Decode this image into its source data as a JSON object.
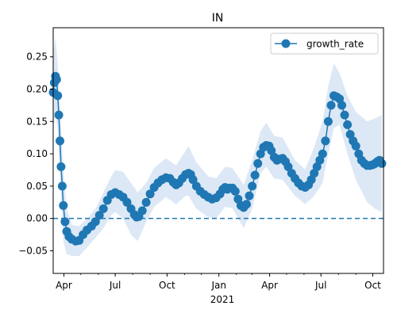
{
  "chart_data": {
    "type": "line",
    "title": "IN",
    "xlabel": "2021",
    "ylabel": "",
    "xlim": [
      "2020-03-13",
      "2021-10-20"
    ],
    "ylim": [
      -0.085,
      0.295
    ],
    "yticks": [
      -0.05,
      0.0,
      0.05,
      0.1,
      0.15,
      0.2,
      0.25
    ],
    "ytick_labels": [
      "−0.05",
      "0.00",
      "0.05",
      "0.10",
      "0.15",
      "0.20",
      "0.25"
    ],
    "xticks": [
      {
        "date": "2020-04-01",
        "label": "Apr"
      },
      {
        "date": "2020-07-01",
        "label": "Jul"
      },
      {
        "date": "2020-10-01",
        "label": "Oct"
      },
      {
        "date": "2021-01-01",
        "label": "Jan"
      },
      {
        "date": "2021-04-01",
        "label": "Apr"
      },
      {
        "date": "2021-07-01",
        "label": "Jul"
      },
      {
        "date": "2021-10-01",
        "label": "Oct"
      }
    ],
    "grid": false,
    "legend": {
      "placement": "upper-right",
      "entries": [
        "growth_rate"
      ]
    },
    "colors": {
      "line": "#1f77b4",
      "band": "#dce8f5",
      "reference": "#1f77b4"
    },
    "reference_line": {
      "y": 0.0,
      "style": "dashed"
    },
    "series": [
      {
        "name": "growth_rate",
        "points": [
          [
            "2020-03-13",
            0.195
          ],
          [
            "2020-03-15",
            0.21
          ],
          [
            "2020-03-17",
            0.22
          ],
          [
            "2020-03-19",
            0.215
          ],
          [
            "2020-03-21",
            0.19
          ],
          [
            "2020-03-23",
            0.16
          ],
          [
            "2020-03-25",
            0.12
          ],
          [
            "2020-03-27",
            0.08
          ],
          [
            "2020-03-29",
            0.05
          ],
          [
            "2020-03-31",
            0.02
          ],
          [
            "2020-04-03",
            -0.005
          ],
          [
            "2020-04-06",
            -0.02
          ],
          [
            "2020-04-10",
            -0.028
          ],
          [
            "2020-04-15",
            -0.032
          ],
          [
            "2020-04-22",
            -0.035
          ],
          [
            "2020-04-28",
            -0.034
          ],
          [
            "2020-05-05",
            -0.025
          ],
          [
            "2020-05-12",
            -0.018
          ],
          [
            "2020-05-20",
            -0.012
          ],
          [
            "2020-05-27",
            -0.005
          ],
          [
            "2020-06-03",
            0.005
          ],
          [
            "2020-06-10",
            0.015
          ],
          [
            "2020-06-17",
            0.028
          ],
          [
            "2020-06-24",
            0.037
          ],
          [
            "2020-07-01",
            0.04
          ],
          [
            "2020-07-08",
            0.037
          ],
          [
            "2020-07-15",
            0.033
          ],
          [
            "2020-07-22",
            0.025
          ],
          [
            "2020-07-29",
            0.015
          ],
          [
            "2020-08-04",
            0.006
          ],
          [
            "2020-08-08",
            0.002
          ],
          [
            "2020-08-12",
            0.003
          ],
          [
            "2020-08-18",
            0.012
          ],
          [
            "2020-08-25",
            0.025
          ],
          [
            "2020-09-01",
            0.038
          ],
          [
            "2020-09-08",
            0.048
          ],
          [
            "2020-09-15",
            0.055
          ],
          [
            "2020-09-22",
            0.06
          ],
          [
            "2020-09-29",
            0.063
          ],
          [
            "2020-10-06",
            0.062
          ],
          [
            "2020-10-12",
            0.056
          ],
          [
            "2020-10-17",
            0.052
          ],
          [
            "2020-10-22",
            0.055
          ],
          [
            "2020-10-28",
            0.062
          ],
          [
            "2020-11-03",
            0.068
          ],
          [
            "2020-11-08",
            0.07
          ],
          [
            "2020-11-12",
            0.068
          ],
          [
            "2020-11-16",
            0.06
          ],
          [
            "2020-11-22",
            0.05
          ],
          [
            "2020-11-29",
            0.042
          ],
          [
            "2020-12-06",
            0.037
          ],
          [
            "2020-12-13",
            0.033
          ],
          [
            "2020-12-20",
            0.03
          ],
          [
            "2020-12-27",
            0.032
          ],
          [
            "2021-01-03",
            0.038
          ],
          [
            "2021-01-08",
            0.045
          ],
          [
            "2021-01-12",
            0.048
          ],
          [
            "2021-01-16",
            0.045
          ],
          [
            "2021-01-20",
            0.047
          ],
          [
            "2021-01-25",
            0.047
          ],
          [
            "2021-01-30",
            0.042
          ],
          [
            "2021-02-04",
            0.03
          ],
          [
            "2021-02-09",
            0.02
          ],
          [
            "2021-02-14",
            0.017
          ],
          [
            "2021-02-19",
            0.022
          ],
          [
            "2021-02-24",
            0.035
          ],
          [
            "2021-03-01",
            0.05
          ],
          [
            "2021-03-06",
            0.067
          ],
          [
            "2021-03-11",
            0.085
          ],
          [
            "2021-03-16",
            0.1
          ],
          [
            "2021-03-21",
            0.11
          ],
          [
            "2021-03-26",
            0.113
          ],
          [
            "2021-03-31",
            0.112
          ],
          [
            "2021-04-04",
            0.105
          ],
          [
            "2021-04-09",
            0.095
          ],
          [
            "2021-04-14",
            0.09
          ],
          [
            "2021-04-19",
            0.092
          ],
          [
            "2021-04-24",
            0.093
          ],
          [
            "2021-04-29",
            0.088
          ],
          [
            "2021-05-04",
            0.08
          ],
          [
            "2021-05-10",
            0.07
          ],
          [
            "2021-05-16",
            0.062
          ],
          [
            "2021-05-22",
            0.055
          ],
          [
            "2021-05-28",
            0.05
          ],
          [
            "2021-06-03",
            0.048
          ],
          [
            "2021-06-09",
            0.052
          ],
          [
            "2021-06-14",
            0.06
          ],
          [
            "2021-06-19",
            0.07
          ],
          [
            "2021-06-24",
            0.08
          ],
          [
            "2021-06-29",
            0.09
          ],
          [
            "2021-07-04",
            0.1
          ],
          [
            "2021-07-09",
            0.12
          ],
          [
            "2021-07-14",
            0.15
          ],
          [
            "2021-07-19",
            0.175
          ],
          [
            "2021-07-24",
            0.19
          ],
          [
            "2021-07-29",
            0.188
          ],
          [
            "2021-08-03",
            0.185
          ],
          [
            "2021-08-07",
            0.175
          ],
          [
            "2021-08-12",
            0.16
          ],
          [
            "2021-08-17",
            0.145
          ],
          [
            "2021-08-22",
            0.13
          ],
          [
            "2021-08-27",
            0.12
          ],
          [
            "2021-09-01",
            0.112
          ],
          [
            "2021-09-06",
            0.1
          ],
          [
            "2021-09-11",
            0.09
          ],
          [
            "2021-09-16",
            0.085
          ],
          [
            "2021-09-21",
            0.082
          ],
          [
            "2021-09-26",
            0.082
          ],
          [
            "2021-10-01",
            0.083
          ],
          [
            "2021-10-05",
            0.085
          ],
          [
            "2021-10-09",
            0.088
          ],
          [
            "2021-10-13",
            0.09
          ],
          [
            "2021-10-17",
            0.085
          ]
        ],
        "band_upper": [
          [
            "2020-03-13",
            0.255
          ],
          [
            "2020-03-17",
            0.28
          ],
          [
            "2020-03-21",
            0.24
          ],
          [
            "2020-03-25",
            0.17
          ],
          [
            "2020-03-31",
            0.075
          ],
          [
            "2020-04-06",
            0.015
          ],
          [
            "2020-04-15",
            -0.01
          ],
          [
            "2020-04-28",
            -0.012
          ],
          [
            "2020-05-12",
            0.0
          ],
          [
            "2020-05-27",
            0.015
          ],
          [
            "2020-06-10",
            0.04
          ],
          [
            "2020-06-24",
            0.065
          ],
          [
            "2020-07-01",
            0.075
          ],
          [
            "2020-07-15",
            0.072
          ],
          [
            "2020-07-29",
            0.055
          ],
          [
            "2020-08-10",
            0.04
          ],
          [
            "2020-08-25",
            0.055
          ],
          [
            "2020-09-08",
            0.078
          ],
          [
            "2020-09-29",
            0.093
          ],
          [
            "2020-10-17",
            0.082
          ],
          [
            "2020-11-03",
            0.105
          ],
          [
            "2020-11-08",
            0.112
          ],
          [
            "2020-11-22",
            0.087
          ],
          [
            "2020-12-13",
            0.065
          ],
          [
            "2020-12-27",
            0.062
          ],
          [
            "2021-01-12",
            0.08
          ],
          [
            "2021-01-25",
            0.078
          ],
          [
            "2021-02-14",
            0.052
          ],
          [
            "2021-03-01",
            0.09
          ],
          [
            "2021-03-16",
            0.135
          ],
          [
            "2021-03-26",
            0.148
          ],
          [
            "2021-04-09",
            0.128
          ],
          [
            "2021-04-24",
            0.125
          ],
          [
            "2021-05-16",
            0.09
          ],
          [
            "2021-06-03",
            0.076
          ],
          [
            "2021-06-19",
            0.11
          ],
          [
            "2021-07-04",
            0.15
          ],
          [
            "2021-07-14",
            0.205
          ],
          [
            "2021-07-24",
            0.24
          ],
          [
            "2021-08-03",
            0.225
          ],
          [
            "2021-08-17",
            0.19
          ],
          [
            "2021-09-01",
            0.165
          ],
          [
            "2021-09-21",
            0.15
          ],
          [
            "2021-10-05",
            0.155
          ],
          [
            "2021-10-17",
            0.16
          ]
        ],
        "band_lower": [
          [
            "2020-03-13",
            0.14
          ],
          [
            "2020-03-17",
            0.16
          ],
          [
            "2020-03-21",
            0.14
          ],
          [
            "2020-03-25",
            0.07
          ],
          [
            "2020-03-31",
            -0.035
          ],
          [
            "2020-04-06",
            -0.055
          ],
          [
            "2020-04-15",
            -0.058
          ],
          [
            "2020-04-28",
            -0.058
          ],
          [
            "2020-05-12",
            -0.045
          ],
          [
            "2020-05-27",
            -0.03
          ],
          [
            "2020-06-10",
            -0.015
          ],
          [
            "2020-06-24",
            0.005
          ],
          [
            "2020-07-01",
            0.01
          ],
          [
            "2020-07-15",
            0.0
          ],
          [
            "2020-07-29",
            -0.025
          ],
          [
            "2020-08-10",
            -0.035
          ],
          [
            "2020-08-25",
            -0.005
          ],
          [
            "2020-09-08",
            0.018
          ],
          [
            "2020-09-29",
            0.033
          ],
          [
            "2020-10-17",
            0.022
          ],
          [
            "2020-11-03",
            0.035
          ],
          [
            "2020-11-08",
            0.035
          ],
          [
            "2020-11-22",
            0.015
          ],
          [
            "2020-12-13",
            0.002
          ],
          [
            "2020-12-27",
            0.0
          ],
          [
            "2021-01-12",
            0.018
          ],
          [
            "2021-01-25",
            0.016
          ],
          [
            "2021-02-14",
            -0.015
          ],
          [
            "2021-03-01",
            0.015
          ],
          [
            "2021-03-16",
            0.07
          ],
          [
            "2021-03-26",
            0.08
          ],
          [
            "2021-04-09",
            0.062
          ],
          [
            "2021-04-24",
            0.06
          ],
          [
            "2021-05-16",
            0.035
          ],
          [
            "2021-06-03",
            0.022
          ],
          [
            "2021-06-19",
            0.035
          ],
          [
            "2021-07-04",
            0.055
          ],
          [
            "2021-07-14",
            0.1
          ],
          [
            "2021-07-24",
            0.14
          ],
          [
            "2021-08-03",
            0.145
          ],
          [
            "2021-08-17",
            0.1
          ],
          [
            "2021-09-01",
            0.06
          ],
          [
            "2021-09-21",
            0.025
          ],
          [
            "2021-10-05",
            0.015
          ],
          [
            "2021-10-17",
            0.01
          ]
        ]
      }
    ]
  }
}
